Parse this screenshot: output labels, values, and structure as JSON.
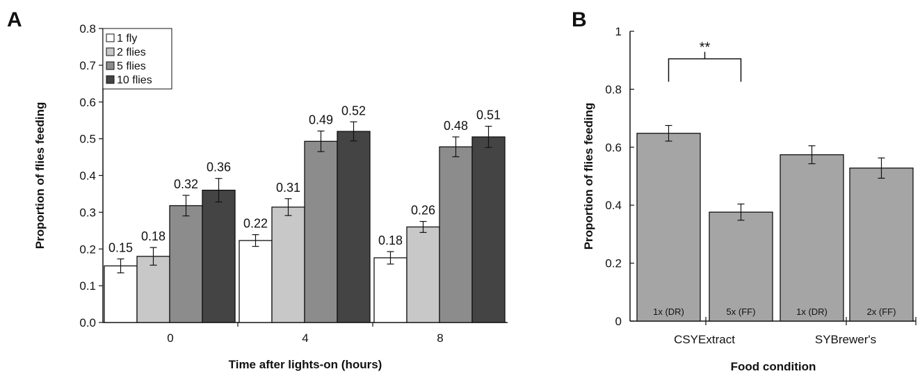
{
  "panel_a_letter": "A",
  "panel_b_letter": "B",
  "chart_data": [
    {
      "type": "bar",
      "panel": "A",
      "title": "",
      "xlabel": "Time after lights-on (hours)",
      "ylabel": "Proportion of flies feeding",
      "categories": [
        "0",
        "4",
        "8"
      ],
      "ylim": [
        0,
        0.8
      ],
      "yticks": [
        "0.0",
        "0.1",
        "0.2",
        "0.3",
        "0.4",
        "0.5",
        "0.6",
        "0.7",
        "0.8"
      ],
      "legend_position": "top-left",
      "grid": false,
      "series": [
        {
          "name": "1 fly",
          "color": "#ffffff",
          "values": [
            0.154,
            0.223,
            0.176
          ],
          "errors": [
            0.019,
            0.016,
            0.017
          ],
          "labels": [
            "0.15",
            "0.22",
            "0.18"
          ]
        },
        {
          "name": "2 flies",
          "color": "#c8c8c8",
          "values": [
            0.18,
            0.314,
            0.26
          ],
          "errors": [
            0.024,
            0.023,
            0.015
          ],
          "labels": [
            "0.18",
            "0.31",
            "0.26"
          ]
        },
        {
          "name": "5 flies",
          "color": "#8c8c8c",
          "values": [
            0.318,
            0.493,
            0.478
          ],
          "errors": [
            0.028,
            0.028,
            0.027
          ],
          "labels": [
            "0.32",
            "0.49",
            "0.48"
          ]
        },
        {
          "name": "10 flies",
          "color": "#444444",
          "values": [
            0.36,
            0.52,
            0.505
          ],
          "errors": [
            0.032,
            0.026,
            0.029
          ],
          "labels": [
            "0.36",
            "0.52",
            "0.51"
          ]
        }
      ]
    },
    {
      "type": "bar",
      "panel": "B",
      "title": "",
      "xlabel": "Food condition",
      "ylabel": "Proportion of flies feeding",
      "ylim": [
        0,
        1
      ],
      "yticks": [
        "0",
        "0.2",
        "0.4",
        "0.6",
        "0.8",
        "1"
      ],
      "grid": false,
      "bar_color": "#a5a5a5",
      "groups": [
        "CSYExtract",
        "SYBrewer's"
      ],
      "bars": [
        {
          "label": "1x (DR)",
          "group": 0,
          "value": 0.648,
          "error": 0.027
        },
        {
          "label": "5x (FF)",
          "group": 0,
          "value": 0.376,
          "error": 0.028
        },
        {
          "label": "1x (DR)",
          "group": 1,
          "value": 0.574,
          "error": 0.031
        },
        {
          "label": "2x (FF)",
          "group": 1,
          "value": 0.528,
          "error": 0.035
        }
      ],
      "significance": {
        "text": "**",
        "between": [
          0,
          1
        ],
        "y": 0.905
      }
    }
  ]
}
